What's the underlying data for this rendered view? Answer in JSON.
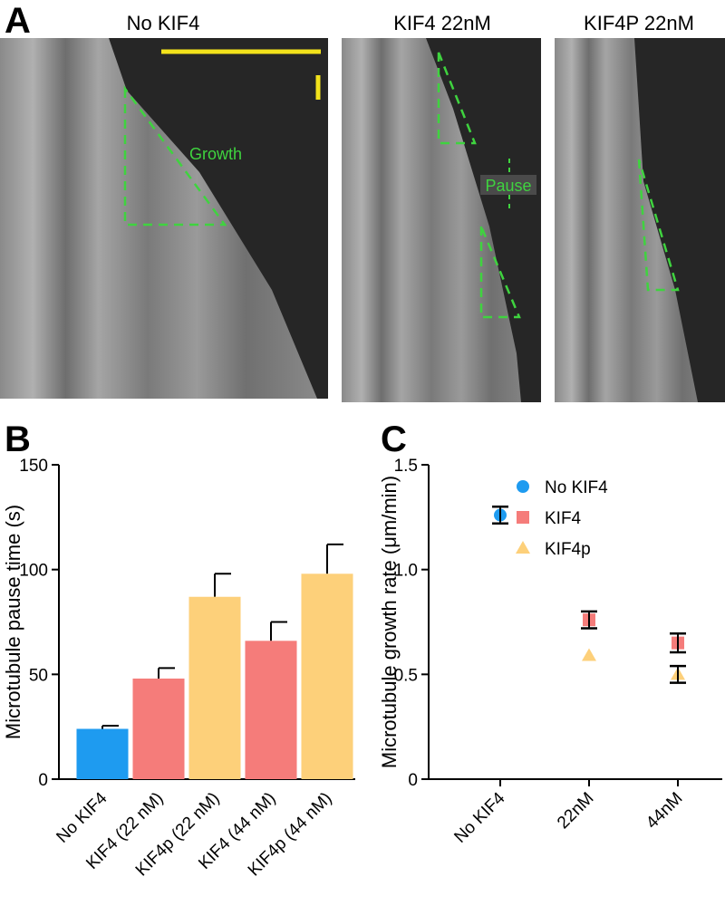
{
  "panel_a": {
    "label": "A",
    "panels": [
      {
        "title": "No KIF4",
        "annotations": [
          "Growth"
        ]
      },
      {
        "title": "KIF4 22nM",
        "annotations": [
          "Pause"
        ]
      },
      {
        "title": "KIF4P 22nM"
      }
    ]
  },
  "chart_data": [
    {
      "type": "bar",
      "panel_label": "B",
      "y_label": "Microtubule pause time (s)",
      "categories": [
        "No KIF4",
        "KIF4 (22 nM)",
        "KIF4p (22 nM)",
        "KIF4 (44 nM)",
        "KIF4p (44 nM)"
      ],
      "values": [
        24,
        48,
        87,
        66,
        98
      ],
      "errors": [
        1.5,
        5,
        11,
        9,
        14
      ],
      "colors": [
        "#1e9bf0",
        "#f57c7a",
        "#fdd07a",
        "#f57c7a",
        "#fdd07a"
      ],
      "ylim": [
        0,
        150
      ],
      "yticks": [
        0,
        50,
        100,
        150
      ]
    },
    {
      "type": "scatter",
      "panel_label": "C",
      "y_label": "Microtubule growth rate (μm/min)",
      "categories": [
        "No KIF4",
        "22nM",
        "44nM"
      ],
      "series": [
        {
          "name": "No KIF4",
          "color": "#1e9bf0",
          "marker": "circle",
          "values": [
            1.26,
            null,
            null
          ],
          "errors": [
            0.04,
            null,
            null
          ]
        },
        {
          "name": "KIF4",
          "color": "#f57c7a",
          "marker": "square",
          "values": [
            null,
            0.76,
            0.65
          ],
          "errors": [
            null,
            0.04,
            0.045
          ]
        },
        {
          "name": "KIF4p",
          "color": "#fdd07a",
          "marker": "triangle",
          "values": [
            null,
            0.59,
            0.5
          ],
          "errors": [
            null,
            null,
            0.04
          ]
        }
      ],
      "legend": "upper-right",
      "ylim": [
        0,
        1.5
      ],
      "yticks": [
        0,
        0.5,
        {
          "value": 1,
          "label": "1.0"
        },
        1.5
      ]
    }
  ]
}
